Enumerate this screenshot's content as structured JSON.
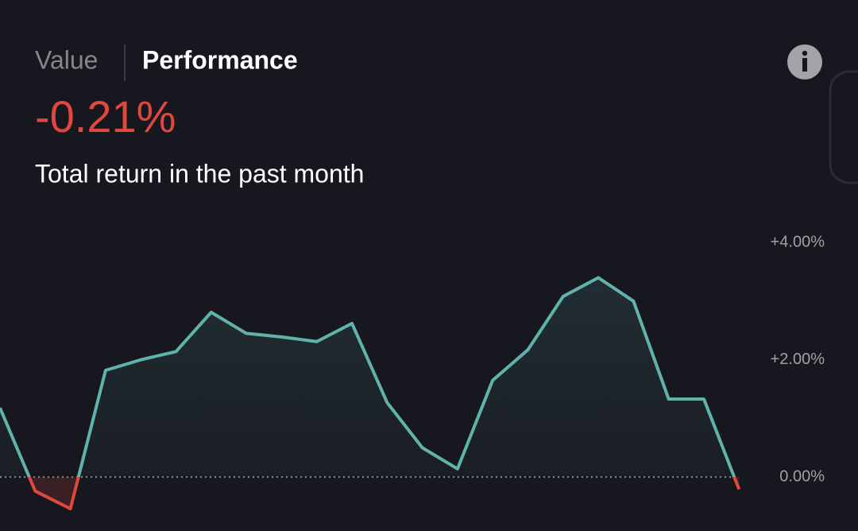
{
  "header": {
    "tabs": [
      "Value",
      "Performance"
    ],
    "headline": "-0.21%",
    "subtitle": "Total return in the past month"
  },
  "chart_data": {
    "type": "line",
    "values": [
      1.18,
      -0.24,
      -0.54,
      1.82,
      2.0,
      2.14,
      2.81,
      2.45,
      2.39,
      2.31,
      2.62,
      1.27,
      0.5,
      0.14,
      1.65,
      2.17,
      3.08,
      3.4,
      3.0,
      1.33,
      1.33,
      -0.21
    ],
    "color": "#5fb3ac",
    "negative_color": "#e0473d",
    "ylim": [
      -0.92,
      4.34
    ],
    "yticks": [
      {
        "value": 4,
        "label": "+4.00%"
      },
      {
        "value": 2,
        "label": "+2.00%"
      },
      {
        "value": 0,
        "label": "0.00%"
      }
    ]
  }
}
